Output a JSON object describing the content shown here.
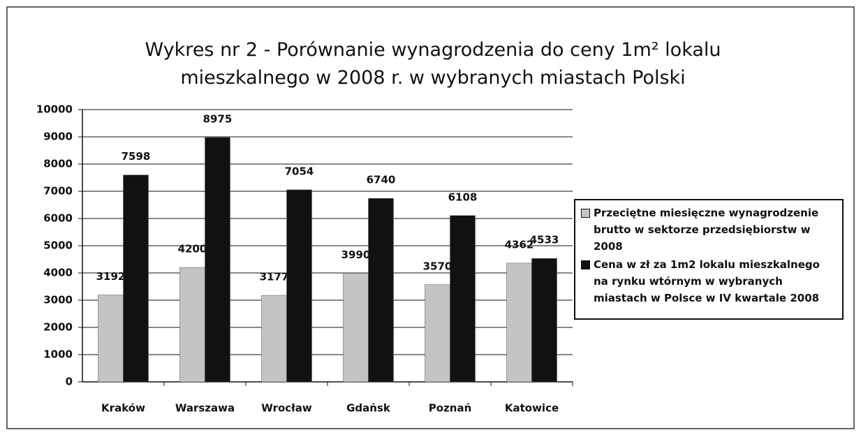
{
  "chart_data": {
    "type": "bar",
    "title": "Wykres nr 2 - Porównanie wynagrodzenia do ceny 1m² lokalu mieszkalnego w 2008 r. w wybranych miastach Polski",
    "categories": [
      "Kraków",
      "Warszawa",
      "Wrocław",
      "Gdańsk",
      "Poznań",
      "Katowice"
    ],
    "series": [
      {
        "name": "Przeciętne miesięczne wynagrodzenie brutto w sektorze przedsiębiorstw  w 2008",
        "color": "#c4c4c4",
        "values": [
          3192,
          4200,
          3177,
          3990,
          3570,
          4362
        ]
      },
      {
        "name": "Cena w zł za 1m2 lokalu mieszkalnego na rynku wtórnym w wybranych miastach w Polsce w IV kwartale 2008",
        "color": "#111111",
        "values": [
          7598,
          8975,
          7054,
          6740,
          6108,
          4533
        ]
      }
    ],
    "ylim": [
      0,
      10000
    ],
    "yticks": [
      0,
      1000,
      2000,
      3000,
      4000,
      5000,
      6000,
      7000,
      8000,
      9000,
      10000
    ],
    "grid": true,
    "legend": "right"
  }
}
